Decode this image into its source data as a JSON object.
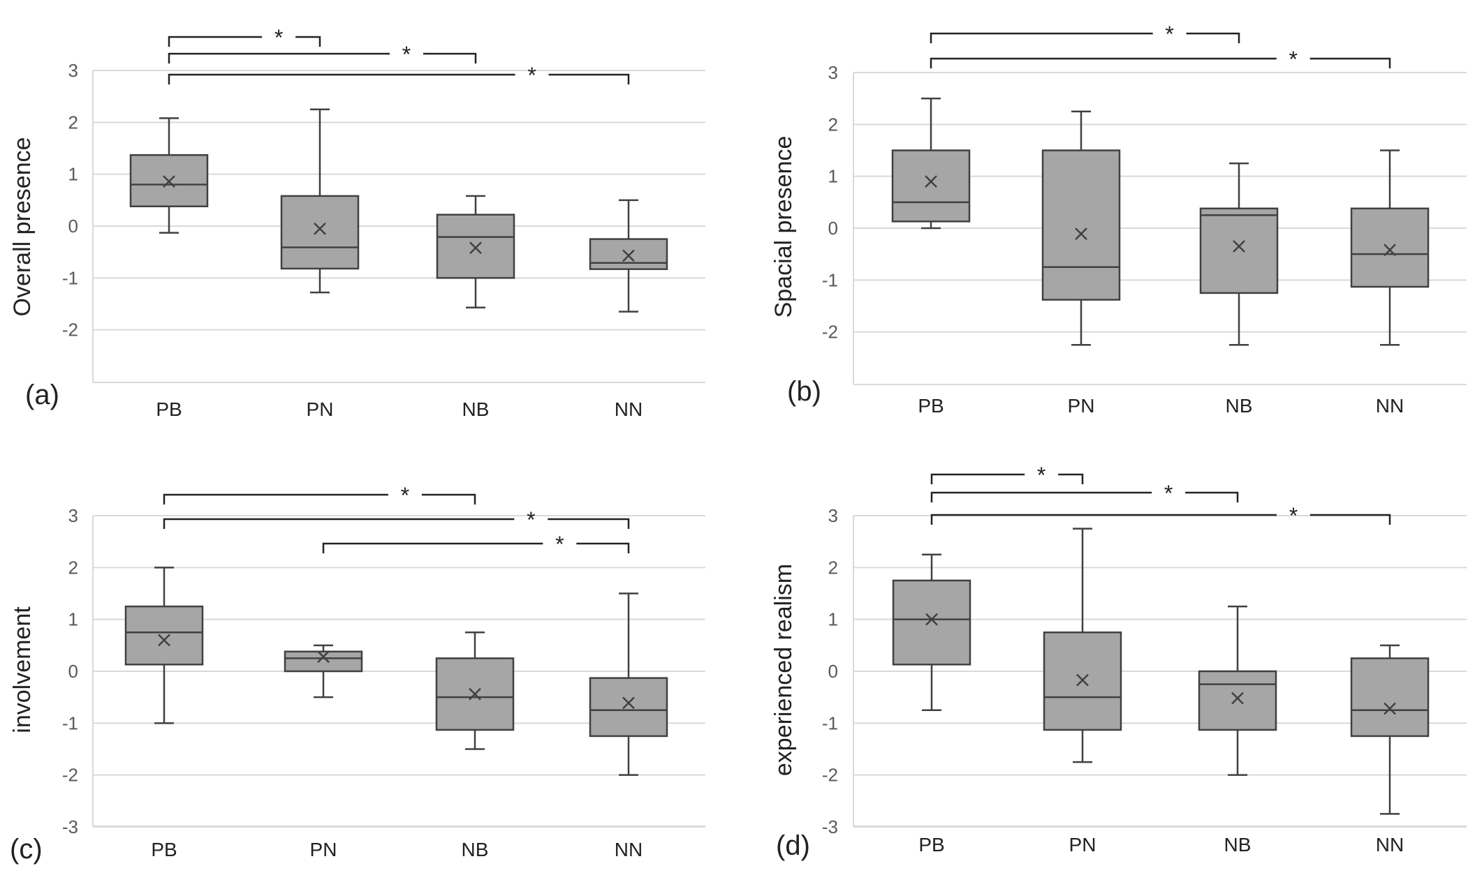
{
  "chart_data": [
    {
      "type": "box",
      "panel_label": "(a)",
      "ylabel": "Overall presence",
      "ylim": [
        -3,
        3
      ],
      "yticks": [
        "3",
        "2",
        "1",
        "0",
        "-1",
        "-2"
      ],
      "categories": [
        "PB",
        "PN",
        "NB",
        "NN"
      ],
      "boxes": [
        {
          "min": -0.13,
          "q1": 0.38,
          "median": 0.8,
          "q3": 1.37,
          "max": 2.08,
          "mean": 0.86
        },
        {
          "min": -1.28,
          "q1": -0.82,
          "median": -0.41,
          "q3": 0.58,
          "max": 2.25,
          "mean": -0.05
        },
        {
          "min": -1.57,
          "q1": -1.0,
          "median": -0.21,
          "q3": 0.22,
          "max": 0.58,
          "mean": -0.42
        },
        {
          "min": -1.65,
          "q1": -0.83,
          "median": -0.71,
          "q3": -0.25,
          "max": 0.5,
          "mean": -0.57
        }
      ],
      "significance": [
        {
          "from": "PB",
          "to": "PN",
          "label": "*"
        },
        {
          "from": "PB",
          "to": "NB",
          "label": "*"
        },
        {
          "from": "PB",
          "to": "NN",
          "label": "*"
        }
      ]
    },
    {
      "type": "box",
      "panel_label": "(b)",
      "ylabel": "Spacial presence",
      "ylim": [
        -3,
        3
      ],
      "yticks": [
        "3",
        "2",
        "1",
        "0",
        "-1",
        "-2"
      ],
      "categories": [
        "PB",
        "PN",
        "NB",
        "NN"
      ],
      "boxes": [
        {
          "min": 0.0,
          "q1": 0.13,
          "median": 0.5,
          "q3": 1.5,
          "max": 2.5,
          "mean": 0.9
        },
        {
          "min": -2.25,
          "q1": -1.38,
          "median": -0.75,
          "q3": 1.5,
          "max": 2.25,
          "mean": -0.11
        },
        {
          "min": -2.25,
          "q1": -1.25,
          "median": 0.25,
          "q3": 0.38,
          "max": 1.25,
          "mean": -0.35
        },
        {
          "min": -2.25,
          "q1": -1.13,
          "median": -0.5,
          "q3": 0.38,
          "max": 1.5,
          "mean": -0.42
        }
      ],
      "significance": [
        {
          "from": "PB",
          "to": "NB",
          "label": "*"
        },
        {
          "from": "PB",
          "to": "NN",
          "label": "*"
        }
      ]
    },
    {
      "type": "box",
      "panel_label": "(c)",
      "ylabel": "involvement",
      "ylim": [
        -3,
        3
      ],
      "yticks": [
        "3",
        "2",
        "1",
        "0",
        "-1",
        "-2",
        "-3"
      ],
      "categories": [
        "PB",
        "PN",
        "NB",
        "NN"
      ],
      "boxes": [
        {
          "min": -1.0,
          "q1": 0.13,
          "median": 0.75,
          "q3": 1.25,
          "max": 2.0,
          "mean": 0.6
        },
        {
          "min": -0.5,
          "q1": 0.0,
          "median": 0.25,
          "q3": 0.38,
          "max": 0.5,
          "mean": 0.28
        },
        {
          "min": -1.5,
          "q1": -1.13,
          "median": -0.5,
          "q3": 0.25,
          "max": 0.75,
          "mean": -0.44
        },
        {
          "min": -2.0,
          "q1": -1.25,
          "median": -0.75,
          "q3": -0.13,
          "max": 1.5,
          "mean": -0.61
        }
      ],
      "significance": [
        {
          "from": "PB",
          "to": "NB",
          "label": "*"
        },
        {
          "from": "PB",
          "to": "NN",
          "label": "*"
        },
        {
          "from": "PN",
          "to": "NN",
          "label": "*"
        }
      ]
    },
    {
      "type": "box",
      "panel_label": "(d)",
      "ylabel": "experienced realism",
      "ylim": [
        -3,
        3
      ],
      "yticks": [
        "3",
        "2",
        "1",
        "0",
        "-1",
        "-2",
        "-3"
      ],
      "categories": [
        "PB",
        "PN",
        "NB",
        "NN"
      ],
      "boxes": [
        {
          "min": -0.75,
          "q1": 0.13,
          "median": 1.0,
          "q3": 1.75,
          "max": 2.25,
          "mean": 1.0
        },
        {
          "min": -1.75,
          "q1": -1.13,
          "median": -0.5,
          "q3": 0.75,
          "max": 2.75,
          "mean": -0.17
        },
        {
          "min": -2.0,
          "q1": -1.13,
          "median": -0.25,
          "q3": 0.0,
          "max": 1.25,
          "mean": -0.52
        },
        {
          "min": -2.75,
          "q1": -1.25,
          "median": -0.75,
          "q3": 0.25,
          "max": 0.5,
          "mean": -0.72
        }
      ],
      "significance": [
        {
          "from": "PB",
          "to": "PN",
          "label": "*"
        },
        {
          "from": "PB",
          "to": "NB",
          "label": "*"
        },
        {
          "from": "PB",
          "to": "NN",
          "label": "*"
        }
      ]
    }
  ]
}
